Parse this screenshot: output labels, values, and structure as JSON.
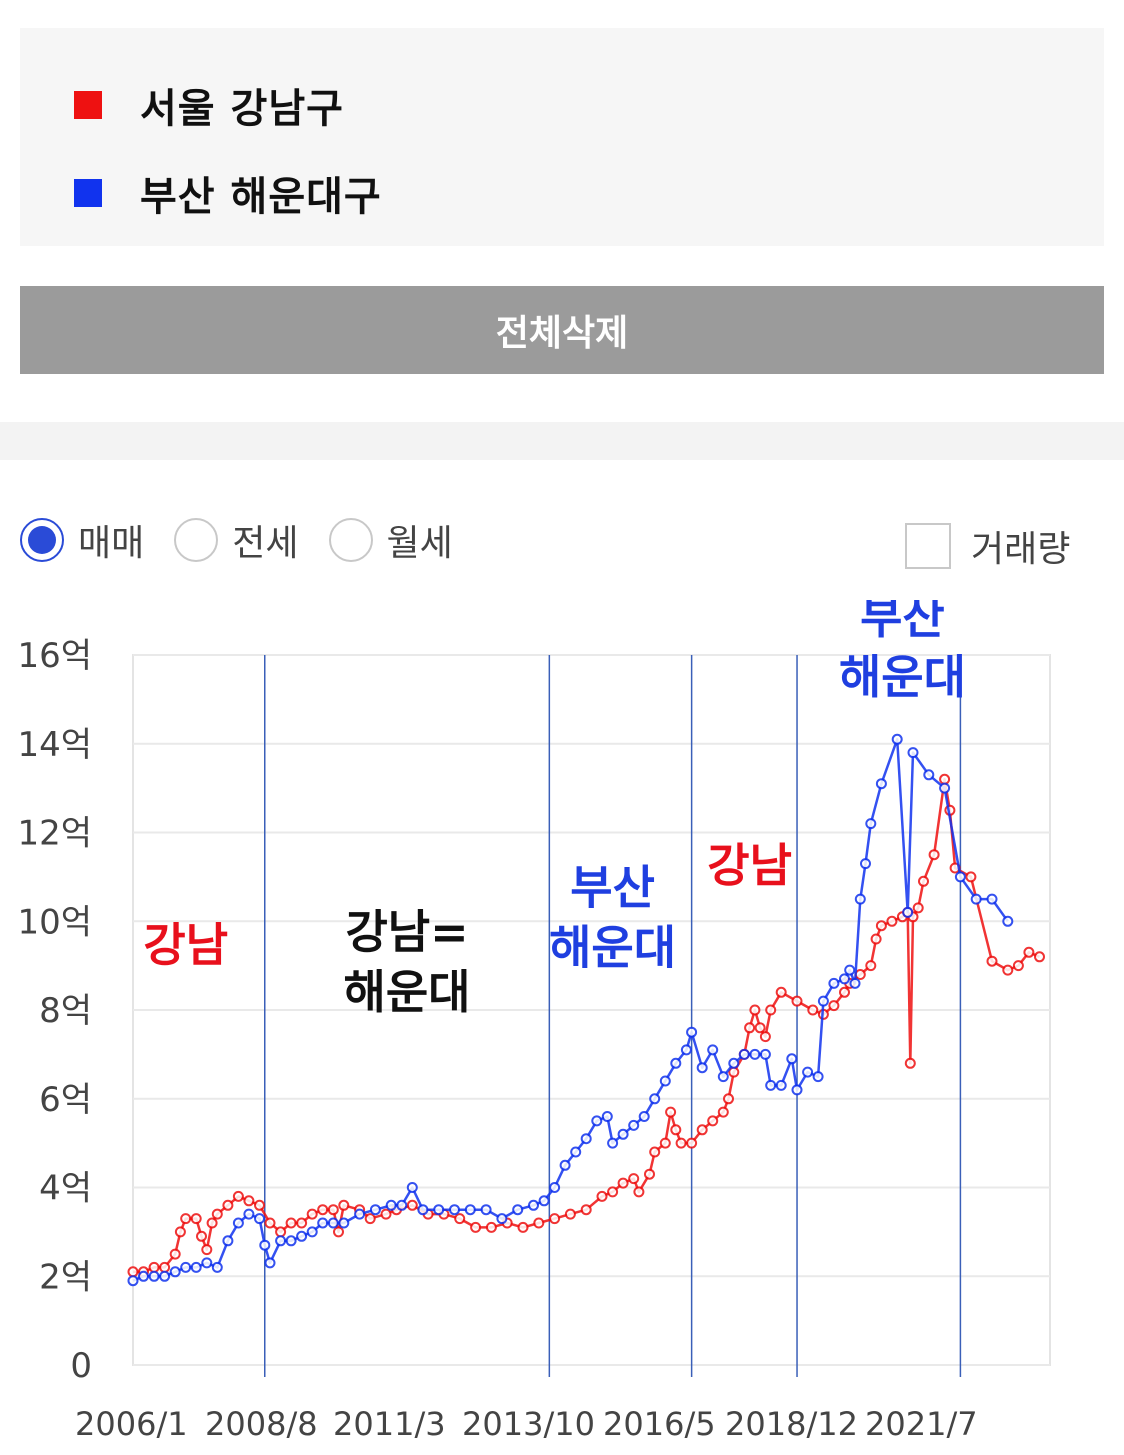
{
  "legend": {
    "items": [
      {
        "label": "서울 강남구",
        "color": "#ee1111"
      },
      {
        "label": "부산 해운대구",
        "color": "#1133ee"
      }
    ]
  },
  "delete_button": {
    "label": "전체삭제"
  },
  "trade_type": {
    "options": [
      {
        "label": "매매",
        "selected": true
      },
      {
        "label": "전세",
        "selected": false
      },
      {
        "label": "월세",
        "selected": false
      }
    ]
  },
  "volume_checkbox": {
    "label": "거래량",
    "checked": false
  },
  "chart_data": {
    "type": "line",
    "y_tick_labels": [
      "0",
      "2억",
      "4억",
      "6억",
      "8억",
      "10억",
      "12억",
      "14억",
      "16억"
    ],
    "ylim": [
      0,
      16
    ],
    "y_unit": "억",
    "x_tick_labels": [
      "2006/1",
      "2008/8",
      "2011/3",
      "2013/10",
      "2016/5",
      "2018/12",
      "2021/7"
    ],
    "xlim": [
      2006.0,
      2023.4
    ],
    "grid": true,
    "period_dividers": [
      2008.5,
      2013.9,
      2016.6,
      2018.6,
      2021.7
    ],
    "annotations": [
      {
        "lines": [
          "강남"
        ],
        "color": "#e8101c",
        "x": 2007.0,
        "y": 9.1
      },
      {
        "lines": [
          "강남=",
          "해운대"
        ],
        "color": "#111111",
        "x": 2011.2,
        "y": 9.4
      },
      {
        "lines": [
          "부산",
          "해운대"
        ],
        "color": "#1f3fe0",
        "x": 2015.1,
        "y": 10.4
      },
      {
        "lines": [
          "강남"
        ],
        "color": "#e8101c",
        "x": 2017.7,
        "y": 10.9
      },
      {
        "lines": [
          "부산",
          "해운대"
        ],
        "color": "#1f3fe0",
        "x": 2020.6,
        "y": 16.5
      }
    ],
    "series": [
      {
        "name": "서울 강남구",
        "color": "#ee1111",
        "points": [
          [
            2006.0,
            2.1
          ],
          [
            2006.2,
            2.1
          ],
          [
            2006.4,
            2.2
          ],
          [
            2006.6,
            2.2
          ],
          [
            2006.8,
            2.5
          ],
          [
            2006.9,
            3.0
          ],
          [
            2007.0,
            3.3
          ],
          [
            2007.2,
            3.3
          ],
          [
            2007.3,
            2.9
          ],
          [
            2007.4,
            2.6
          ],
          [
            2007.5,
            3.2
          ],
          [
            2007.6,
            3.4
          ],
          [
            2007.8,
            3.6
          ],
          [
            2008.0,
            3.8
          ],
          [
            2008.2,
            3.7
          ],
          [
            2008.4,
            3.6
          ],
          [
            2008.6,
            3.2
          ],
          [
            2008.8,
            3.0
          ],
          [
            2009.0,
            3.2
          ],
          [
            2009.2,
            3.2
          ],
          [
            2009.4,
            3.4
          ],
          [
            2009.6,
            3.5
          ],
          [
            2009.8,
            3.5
          ],
          [
            2009.9,
            3.0
          ],
          [
            2010.0,
            3.6
          ],
          [
            2010.3,
            3.5
          ],
          [
            2010.5,
            3.3
          ],
          [
            2010.8,
            3.4
          ],
          [
            2011.0,
            3.5
          ],
          [
            2011.3,
            3.6
          ],
          [
            2011.6,
            3.4
          ],
          [
            2011.9,
            3.4
          ],
          [
            2012.2,
            3.3
          ],
          [
            2012.5,
            3.1
          ],
          [
            2012.8,
            3.1
          ],
          [
            2013.1,
            3.2
          ],
          [
            2013.4,
            3.1
          ],
          [
            2013.7,
            3.2
          ],
          [
            2014.0,
            3.3
          ],
          [
            2014.3,
            3.4
          ],
          [
            2014.6,
            3.5
          ],
          [
            2014.9,
            3.8
          ],
          [
            2015.1,
            3.9
          ],
          [
            2015.3,
            4.1
          ],
          [
            2015.5,
            4.2
          ],
          [
            2015.6,
            3.9
          ],
          [
            2015.8,
            4.3
          ],
          [
            2015.9,
            4.8
          ],
          [
            2016.1,
            5.0
          ],
          [
            2016.2,
            5.7
          ],
          [
            2016.3,
            5.3
          ],
          [
            2016.4,
            5.0
          ],
          [
            2016.6,
            5.0
          ],
          [
            2016.8,
            5.3
          ],
          [
            2017.0,
            5.5
          ],
          [
            2017.2,
            5.7
          ],
          [
            2017.3,
            6.0
          ],
          [
            2017.4,
            6.6
          ],
          [
            2017.6,
            7.0
          ],
          [
            2017.7,
            7.6
          ],
          [
            2017.8,
            8.0
          ],
          [
            2017.9,
            7.6
          ],
          [
            2018.0,
            7.4
          ],
          [
            2018.1,
            8.0
          ],
          [
            2018.3,
            8.4
          ],
          [
            2018.6,
            8.2
          ],
          [
            2018.9,
            8.0
          ],
          [
            2019.1,
            7.9
          ],
          [
            2019.3,
            8.1
          ],
          [
            2019.5,
            8.4
          ],
          [
            2019.6,
            8.6
          ],
          [
            2019.8,
            8.8
          ],
          [
            2020.0,
            9.0
          ],
          [
            2020.1,
            9.6
          ],
          [
            2020.2,
            9.9
          ],
          [
            2020.4,
            10.0
          ],
          [
            2020.6,
            10.1
          ],
          [
            2020.7,
            10.2
          ],
          [
            2020.75,
            6.8
          ],
          [
            2020.8,
            10.1
          ],
          [
            2020.9,
            10.3
          ],
          [
            2021.0,
            10.9
          ],
          [
            2021.2,
            11.5
          ],
          [
            2021.4,
            13.2
          ],
          [
            2021.5,
            12.5
          ],
          [
            2021.6,
            11.2
          ],
          [
            2021.9,
            11.0
          ],
          [
            2022.3,
            9.1
          ],
          [
            2022.6,
            8.9
          ],
          [
            2022.8,
            9.0
          ],
          [
            2023.0,
            9.3
          ],
          [
            2023.2,
            9.2
          ]
        ]
      },
      {
        "name": "부산 해운대구",
        "color": "#1133ee",
        "points": [
          [
            2006.0,
            1.9
          ],
          [
            2006.2,
            2.0
          ],
          [
            2006.4,
            2.0
          ],
          [
            2006.6,
            2.0
          ],
          [
            2006.8,
            2.1
          ],
          [
            2007.0,
            2.2
          ],
          [
            2007.2,
            2.2
          ],
          [
            2007.4,
            2.3
          ],
          [
            2007.6,
            2.2
          ],
          [
            2007.8,
            2.8
          ],
          [
            2008.0,
            3.2
          ],
          [
            2008.2,
            3.4
          ],
          [
            2008.4,
            3.3
          ],
          [
            2008.5,
            2.7
          ],
          [
            2008.6,
            2.3
          ],
          [
            2008.8,
            2.8
          ],
          [
            2009.0,
            2.8
          ],
          [
            2009.2,
            2.9
          ],
          [
            2009.4,
            3.0
          ],
          [
            2009.6,
            3.2
          ],
          [
            2009.8,
            3.2
          ],
          [
            2010.0,
            3.2
          ],
          [
            2010.3,
            3.4
          ],
          [
            2010.6,
            3.5
          ],
          [
            2010.9,
            3.6
          ],
          [
            2011.1,
            3.6
          ],
          [
            2011.3,
            4.0
          ],
          [
            2011.5,
            3.5
          ],
          [
            2011.8,
            3.5
          ],
          [
            2012.1,
            3.5
          ],
          [
            2012.4,
            3.5
          ],
          [
            2012.7,
            3.5
          ],
          [
            2013.0,
            3.3
          ],
          [
            2013.3,
            3.5
          ],
          [
            2013.6,
            3.6
          ],
          [
            2013.8,
            3.7
          ],
          [
            2014.0,
            4.0
          ],
          [
            2014.2,
            4.5
          ],
          [
            2014.4,
            4.8
          ],
          [
            2014.6,
            5.1
          ],
          [
            2014.8,
            5.5
          ],
          [
            2015.0,
            5.6
          ],
          [
            2015.1,
            5.0
          ],
          [
            2015.3,
            5.2
          ],
          [
            2015.5,
            5.4
          ],
          [
            2015.7,
            5.6
          ],
          [
            2015.9,
            6.0
          ],
          [
            2016.1,
            6.4
          ],
          [
            2016.3,
            6.8
          ],
          [
            2016.5,
            7.1
          ],
          [
            2016.6,
            7.5
          ],
          [
            2016.8,
            6.7
          ],
          [
            2017.0,
            7.1
          ],
          [
            2017.2,
            6.5
          ],
          [
            2017.4,
            6.8
          ],
          [
            2017.6,
            7.0
          ],
          [
            2017.8,
            7.0
          ],
          [
            2018.0,
            7.0
          ],
          [
            2018.1,
            6.3
          ],
          [
            2018.3,
            6.3
          ],
          [
            2018.5,
            6.9
          ],
          [
            2018.6,
            6.2
          ],
          [
            2018.8,
            6.6
          ],
          [
            2019.0,
            6.5
          ],
          [
            2019.1,
            8.2
          ],
          [
            2019.3,
            8.6
          ],
          [
            2019.5,
            8.7
          ],
          [
            2019.6,
            8.9
          ],
          [
            2019.7,
            8.6
          ],
          [
            2019.8,
            10.5
          ],
          [
            2019.9,
            11.3
          ],
          [
            2020.0,
            12.2
          ],
          [
            2020.2,
            13.1
          ],
          [
            2020.5,
            14.1
          ],
          [
            2020.7,
            10.2
          ],
          [
            2020.8,
            13.8
          ],
          [
            2021.1,
            13.3
          ],
          [
            2021.4,
            13.0
          ],
          [
            2021.7,
            11.0
          ],
          [
            2022.0,
            10.5
          ],
          [
            2022.3,
            10.5
          ],
          [
            2022.6,
            10.0
          ]
        ]
      }
    ]
  }
}
